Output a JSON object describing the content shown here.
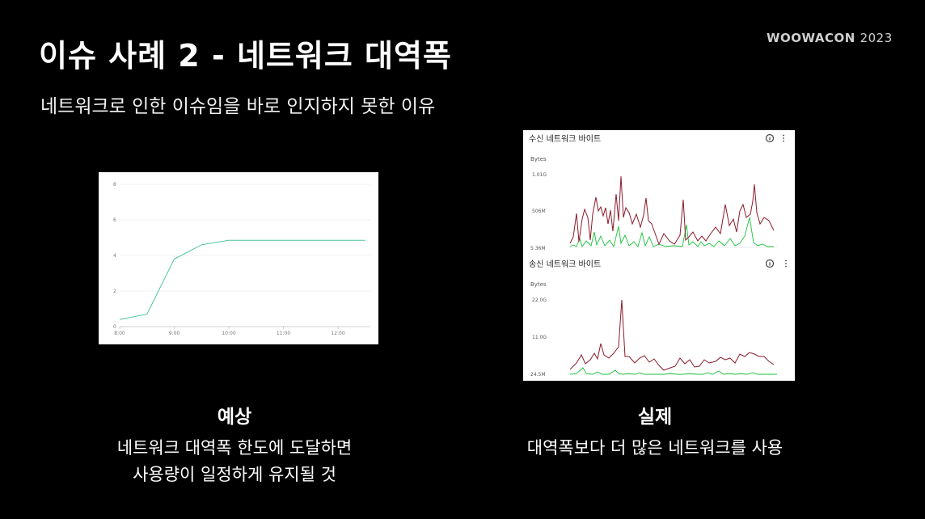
{
  "slide": {
    "title": "이슈 사례 2 - 네트워크 대역폭",
    "subtitle": "네트워크로 인한 이슈임을 바로 인지하지 못한 이유"
  },
  "logo": {
    "brand": "WOOWACON",
    "year": "2023"
  },
  "expected": {
    "heading": "예상",
    "line1": "네트워크 대역폭 한도에 도달하면",
    "line2": "사용량이 일정하게 유지될 것"
  },
  "actual": {
    "heading": "실제",
    "line1": "대역폭보다 더 많은 네트워크를 사용"
  },
  "charts": {
    "expected": {
      "y_ticks": [
        "8",
        "6",
        "4",
        "2",
        "0"
      ],
      "x_ticks": [
        "8:00",
        "9:00",
        "10:00",
        "11:00",
        "12:00"
      ],
      "color": "#4fc3a1"
    },
    "received": {
      "title": "수신 네트워크 바이트",
      "unit": "Bytes",
      "y_ticks": [
        "1.01G",
        "506M",
        "5.36M"
      ]
    },
    "sent": {
      "title": "송신 네트워크 바이트",
      "unit": "Bytes",
      "y_ticks": [
        "22.0G",
        "11.0G",
        "24.5M"
      ]
    },
    "line_colors": {
      "primary": "#8b1a2b",
      "secondary": "#19c23a"
    }
  },
  "chart_data": [
    {
      "type": "line",
      "x": [
        "8:00",
        "8:30",
        "9:00",
        "9:30",
        "10:00",
        "10:30",
        "11:00",
        "11:30",
        "12:00",
        "12:30"
      ],
      "series": [
        {
          "values": [
            0.4,
            0.7,
            3.8,
            4.6,
            4.85,
            4.85,
            4.85,
            4.85,
            4.85,
            4.85
          ]
        }
      ],
      "ylim": [
        0,
        8
      ],
      "grid": "horizontal"
    }
  ]
}
